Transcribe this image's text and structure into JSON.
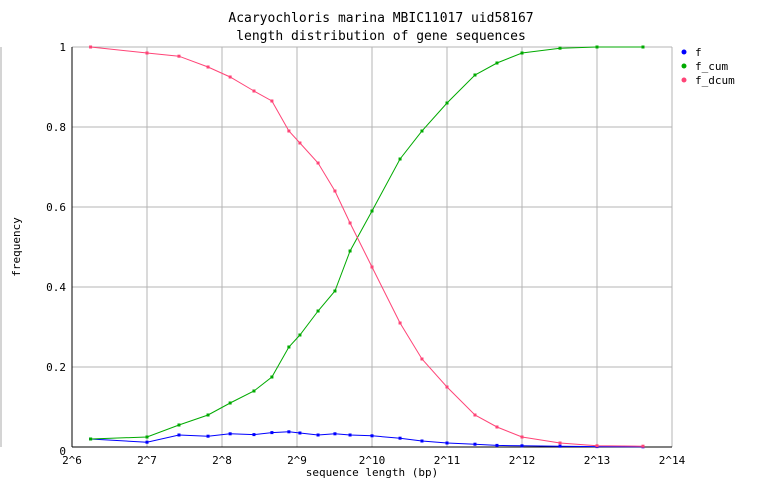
{
  "chart_data": {
    "type": "line",
    "title": "Acaryochloris marina MBIC11017 uid58167",
    "subtitle": "length distribution of gene sequences",
    "xlabel": "sequence length (bp)",
    "ylabel": "frequency",
    "x_scale": "log2",
    "xlim": [
      64,
      16384
    ],
    "ylim": [
      0,
      1
    ],
    "x_ticks": [
      64,
      128,
      256,
      512,
      1024,
      2048,
      4096,
      8192,
      16384
    ],
    "x_tick_labels": [
      "2^6",
      "2^7",
      "2^8",
      "2^9",
      "2^10",
      "2^11",
      "2^12",
      "2^13",
      "2^14"
    ],
    "y_ticks": [
      0,
      0.2,
      0.4,
      0.6,
      0.8,
      1
    ],
    "y_tick_labels": [
      "0",
      "0.2",
      "0.4",
      "0.6",
      "0.8",
      "1"
    ],
    "grid": true,
    "legend_position": "right",
    "x": [
      76,
      128,
      172,
      225,
      276,
      344,
      406,
      475,
      526,
      622,
      727,
      836,
      1024,
      1327,
      1625,
      2048,
      2652,
      3250,
      4096,
      5820,
      8192,
      12530
    ],
    "series": [
      {
        "name": "f",
        "color": "#0000ff",
        "values": [
          0.02,
          0.012,
          0.03,
          0.027,
          0.033,
          0.031,
          0.036,
          0.038,
          0.035,
          0.03,
          0.033,
          0.03,
          0.028,
          0.022,
          0.015,
          0.01,
          0.007,
          0.004,
          0.003,
          0.002,
          0.001,
          0.0005
        ]
      },
      {
        "name": "f_cum",
        "color": "#00aa00",
        "values": [
          0.02,
          0.025,
          0.055,
          0.08,
          0.11,
          0.14,
          0.175,
          0.25,
          0.28,
          0.34,
          0.39,
          0.49,
          0.59,
          0.72,
          0.79,
          0.86,
          0.93,
          0.96,
          0.985,
          0.997,
          1.0,
          1.0
        ]
      },
      {
        "name": "f_dcum",
        "color": "#ff4477",
        "values": [
          1.0,
          0.985,
          0.977,
          0.95,
          0.925,
          0.89,
          0.865,
          0.79,
          0.76,
          0.71,
          0.64,
          0.56,
          0.45,
          0.31,
          0.22,
          0.15,
          0.08,
          0.05,
          0.025,
          0.01,
          0.003,
          0.002
        ]
      }
    ]
  }
}
